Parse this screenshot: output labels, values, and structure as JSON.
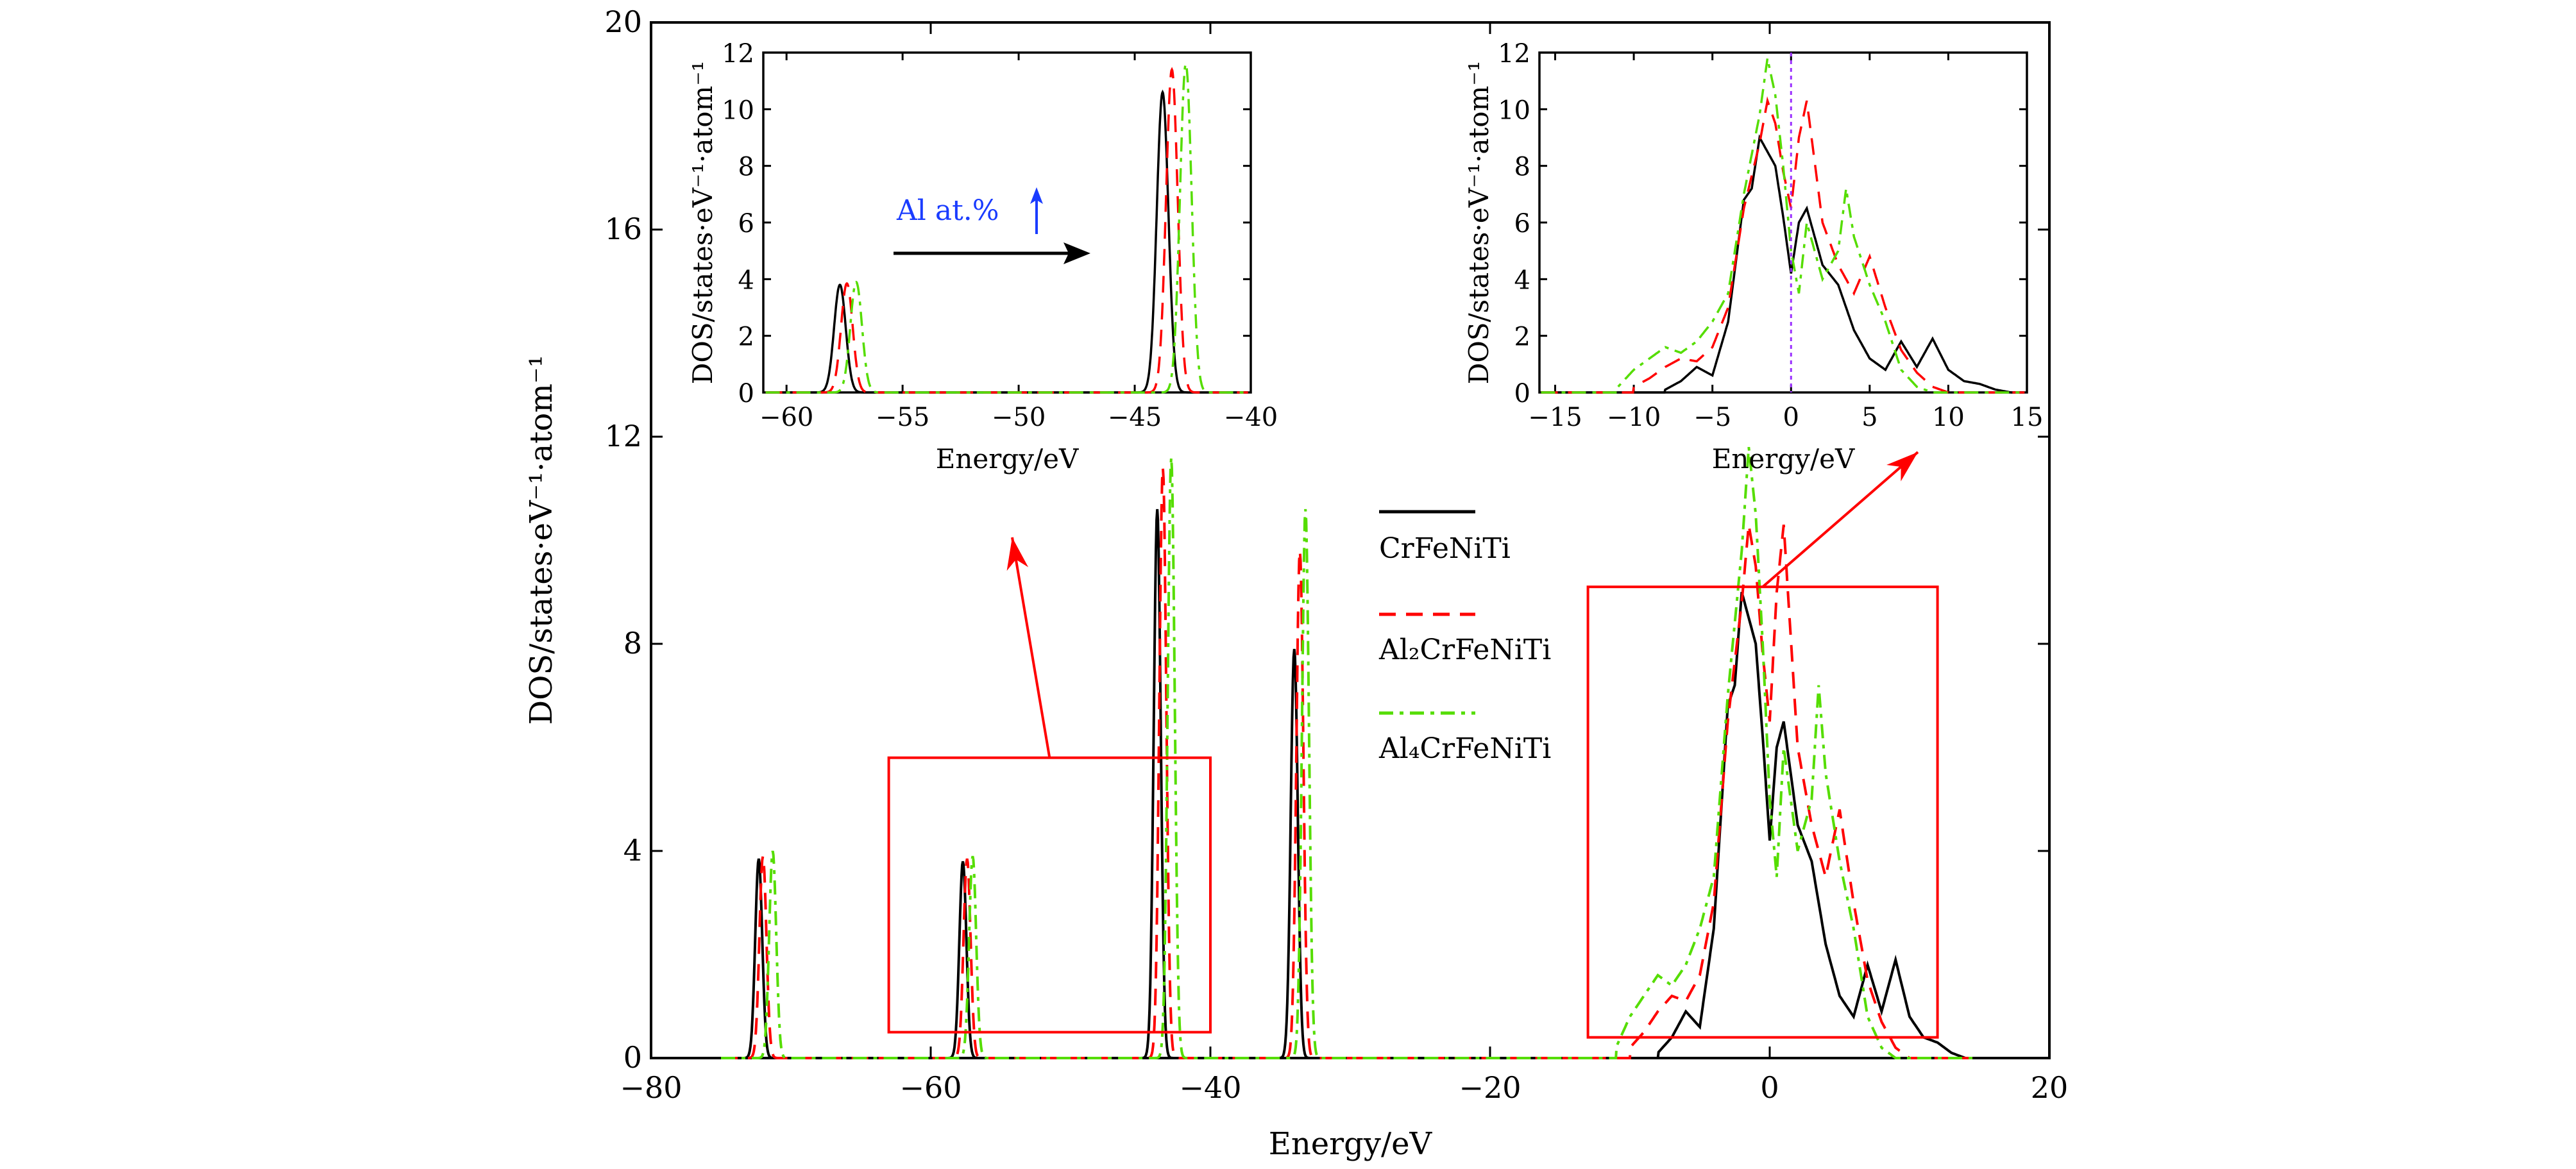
{
  "chart_data": [
    {
      "type": "line",
      "title": "",
      "xlabel": "Energy/eV",
      "ylabel": "DOS/states·eV⁻¹·atom⁻¹",
      "xlim": [
        -80,
        20
      ],
      "ylim": [
        0,
        20
      ],
      "xticks": [
        -80,
        -60,
        -40,
        -20,
        0,
        20
      ],
      "yticks": [
        0,
        4,
        8,
        12,
        16,
        20
      ],
      "xtick_labels": [
        "−80",
        "−60",
        "−40",
        "−20",
        "0",
        "20"
      ],
      "ytick_labels": [
        "0",
        "4",
        "8",
        "12",
        "16",
        "20"
      ],
      "legend_position": "center-right",
      "series": [
        {
          "name": "CrFeNiTi",
          "color": "#000000",
          "dash": "solid",
          "peaks": [
            {
              "center": -72.3,
              "height": 3.85,
              "width": 0.25
            },
            {
              "center": -57.7,
              "height": 3.8,
              "width": 0.25
            },
            {
              "center": -43.8,
              "height": 10.6,
              "width": 0.25
            },
            {
              "center": -34.0,
              "height": 7.9,
              "width": 0.25
            }
          ],
          "valence": [
            [
              -8,
              0.1
            ],
            [
              -7,
              0.4
            ],
            [
              -6,
              0.9
            ],
            [
              -5,
              0.6
            ],
            [
              -4,
              2.5
            ],
            [
              -3,
              6.8
            ],
            [
              -2.5,
              7.2
            ],
            [
              -2,
              9.0
            ],
            [
              -1,
              8.0
            ],
            [
              -0.5,
              6.2
            ],
            [
              0,
              4.2
            ],
            [
              0.5,
              6.0
            ],
            [
              1,
              6.5
            ],
            [
              2,
              4.5
            ],
            [
              3,
              3.8
            ],
            [
              4,
              2.2
            ],
            [
              5,
              1.2
            ],
            [
              6,
              0.8
            ],
            [
              7,
              1.8
            ],
            [
              8,
              0.9
            ],
            [
              9,
              1.9
            ],
            [
              10,
              0.8
            ],
            [
              11,
              0.4
            ],
            [
              12,
              0.3
            ],
            [
              13,
              0.1
            ],
            [
              14,
              0.0
            ]
          ]
        },
        {
          "name": "Al₂CrFeNiTi",
          "color": "#ff0000",
          "dash": "dashed",
          "peaks": [
            {
              "center": -72.0,
              "height": 3.9,
              "width": 0.25
            },
            {
              "center": -57.4,
              "height": 3.85,
              "width": 0.25
            },
            {
              "center": -43.4,
              "height": 11.4,
              "width": 0.25
            },
            {
              "center": -33.6,
              "height": 9.8,
              "width": 0.25
            }
          ],
          "valence": [
            [
              -10,
              0.2
            ],
            [
              -9,
              0.5
            ],
            [
              -8,
              0.9
            ],
            [
              -7,
              1.2
            ],
            [
              -6,
              1.1
            ],
            [
              -5,
              1.6
            ],
            [
              -4,
              3.0
            ],
            [
              -3,
              6.5
            ],
            [
              -2,
              8.8
            ],
            [
              -1.5,
              10.3
            ],
            [
              -1,
              9.5
            ],
            [
              -0.5,
              7.8
            ],
            [
              0,
              6.5
            ],
            [
              0.5,
              9.0
            ],
            [
              1,
              10.3
            ],
            [
              2,
              6.0
            ],
            [
              3,
              4.5
            ],
            [
              4,
              3.5
            ],
            [
              5,
              4.8
            ],
            [
              6,
              3.0
            ],
            [
              7,
              1.5
            ],
            [
              8,
              0.7
            ],
            [
              9,
              0.2
            ],
            [
              10,
              0.0
            ]
          ]
        },
        {
          "name": "Al₄CrFeNiTi",
          "color": "#55dd00",
          "dash": "dash-dot",
          "peaks": [
            {
              "center": -71.3,
              "height": 4.0,
              "width": 0.25
            },
            {
              "center": -57.0,
              "height": 3.9,
              "width": 0.25
            },
            {
              "center": -42.8,
              "height": 11.6,
              "width": 0.25
            },
            {
              "center": -33.2,
              "height": 10.6,
              "width": 0.25
            }
          ],
          "valence": [
            [
              -11,
              0.2
            ],
            [
              -10,
              0.8
            ],
            [
              -9,
              1.2
            ],
            [
              -8,
              1.6
            ],
            [
              -7,
              1.4
            ],
            [
              -6,
              1.8
            ],
            [
              -5,
              2.5
            ],
            [
              -4,
              3.5
            ],
            [
              -3,
              7.0
            ],
            [
              -2,
              9.8
            ],
            [
              -1.5,
              11.8
            ],
            [
              -1,
              10.5
            ],
            [
              -0.5,
              8.0
            ],
            [
              0,
              5.0
            ],
            [
              0.5,
              3.5
            ],
            [
              1,
              6.0
            ],
            [
              2,
              4.0
            ],
            [
              3,
              5.0
            ],
            [
              3.5,
              7.2
            ],
            [
              4,
              5.5
            ],
            [
              5,
              3.8
            ],
            [
              6,
              2.5
            ],
            [
              7,
              0.8
            ],
            [
              8,
              0.2
            ],
            [
              9,
              0.0
            ]
          ]
        }
      ],
      "annotations": {
        "box_left": {
          "x": [
            -63,
            -40
          ],
          "y": [
            0.5,
            5.8
          ]
        },
        "box_right": {
          "x": [
            -13,
            12
          ],
          "y": [
            0.4,
            9.1
          ]
        }
      }
    },
    {
      "type": "line",
      "title": "",
      "xlabel": "Energy/eV",
      "ylabel": "DOS/states·eV⁻¹·atom⁻¹",
      "xlim": [
        -61,
        -40
      ],
      "ylim": [
        0,
        12
      ],
      "xticks": [
        -60,
        -55,
        -50,
        -45,
        -40
      ],
      "yticks": [
        0,
        2,
        4,
        6,
        8,
        10,
        12
      ],
      "xtick_labels": [
        "−60",
        "−55",
        "−50",
        "−45",
        "−40"
      ],
      "ytick_labels": [
        "0",
        "2",
        "4",
        "6",
        "8",
        "10",
        "12"
      ],
      "annotation_text": "Al at.%",
      "annotation_arrow": {
        "from": [
          -56,
          4.9
        ],
        "to": [
          -48,
          4.9
        ]
      }
    },
    {
      "type": "line",
      "title": "",
      "xlabel": "Energy/eV",
      "ylabel": "DOS/states·eV⁻¹·atom⁻¹",
      "xlim": [
        -16,
        15
      ],
      "ylim": [
        0,
        12
      ],
      "xticks": [
        -15,
        -10,
        -5,
        0,
        5,
        10,
        15
      ],
      "yticks": [
        0,
        2,
        4,
        6,
        8,
        10,
        12
      ],
      "xtick_labels": [
        "−15",
        "−10",
        "−5",
        "0",
        "5",
        "10",
        "15"
      ],
      "ytick_labels": [
        "0",
        "2",
        "4",
        "6",
        "8",
        "10",
        "12"
      ],
      "fermi_line_x": 0
    }
  ]
}
